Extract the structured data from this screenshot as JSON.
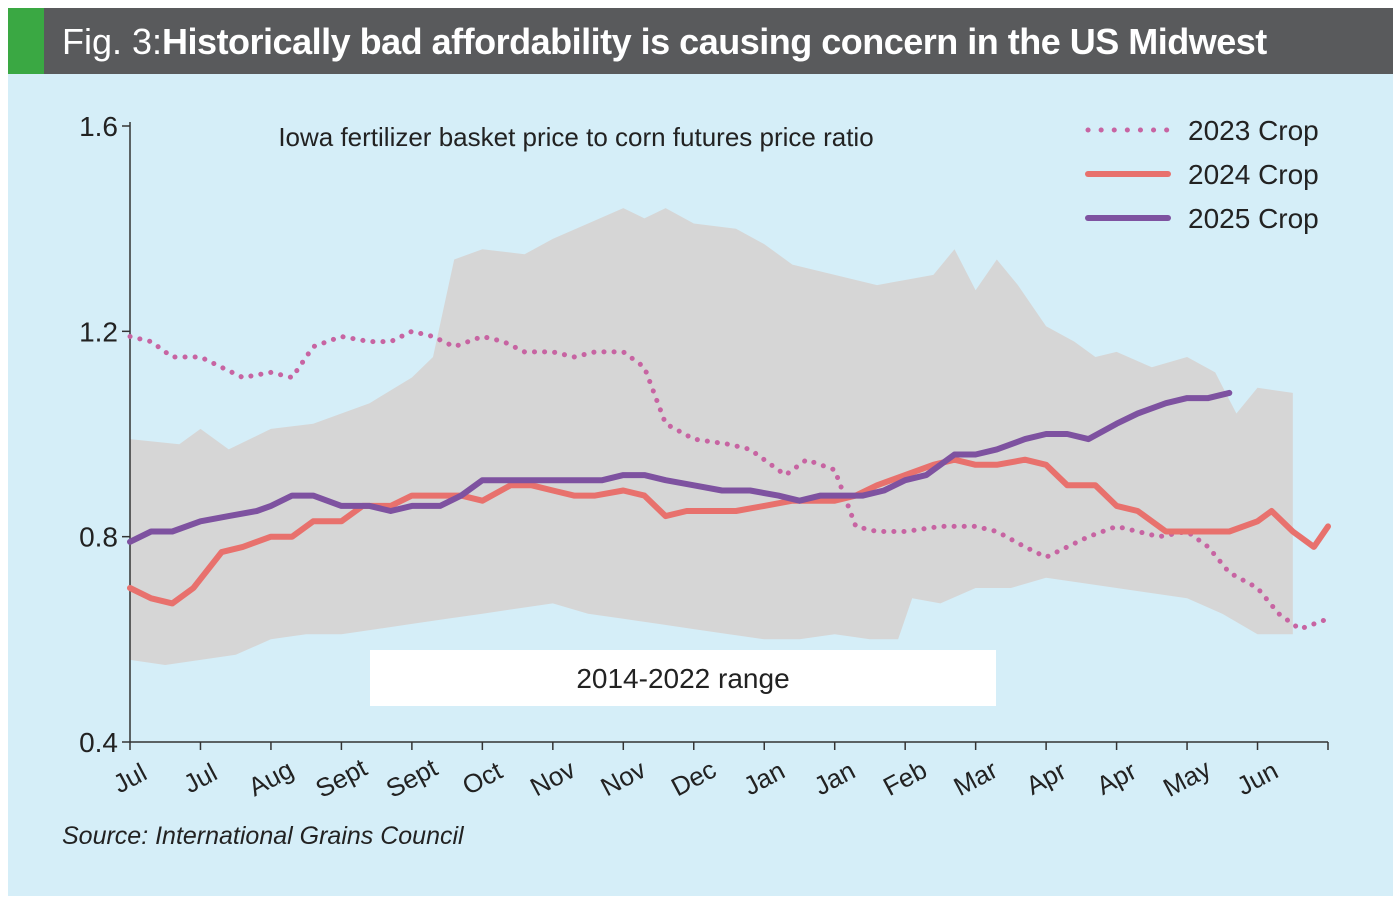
{
  "header": {
    "fig_label": "Fig. 3:",
    "title": "Historically bad affordability is causing concern in the US Midwest",
    "accent_color": "#3aa843",
    "bar_color": "#595a5c"
  },
  "source": "Source: International Grains Council",
  "chart_data": {
    "type": "line",
    "title": "Iowa fertilizer basket price to corn futures price ratio",
    "ylim": [
      0.4,
      1.6
    ],
    "yticks": [
      "0.4",
      "0.8",
      "1.2",
      "1.6"
    ],
    "xlim": [
      0,
      17
    ],
    "xticks": [
      "Jul",
      "Jul",
      "Aug",
      "Sept",
      "Sept",
      "Oct",
      "Nov",
      "Nov",
      "Dec",
      "Jan",
      "Jan",
      "Feb",
      "Mar",
      "Apr",
      "Apr",
      "May",
      "Jun"
    ],
    "legend_position": "top-right",
    "range_band": {
      "label": "2014-2022 range",
      "color": "#d6d6d6",
      "upper": [
        [
          0,
          0.99
        ],
        [
          0.7,
          0.98
        ],
        [
          1,
          1.01
        ],
        [
          1.4,
          0.97
        ],
        [
          2,
          1.01
        ],
        [
          2.6,
          1.02
        ],
        [
          3,
          1.04
        ],
        [
          3.4,
          1.06
        ],
        [
          4,
          1.11
        ],
        [
          4.3,
          1.15
        ],
        [
          4.6,
          1.34
        ],
        [
          5,
          1.36
        ],
        [
          5.6,
          1.35
        ],
        [
          6,
          1.38
        ],
        [
          6.5,
          1.41
        ],
        [
          7,
          1.44
        ],
        [
          7.3,
          1.42
        ],
        [
          7.6,
          1.44
        ],
        [
          8,
          1.41
        ],
        [
          8.6,
          1.4
        ],
        [
          9,
          1.37
        ],
        [
          9.4,
          1.33
        ],
        [
          10,
          1.31
        ],
        [
          10.6,
          1.29
        ],
        [
          11,
          1.3
        ],
        [
          11.4,
          1.31
        ],
        [
          11.7,
          1.36
        ],
        [
          12,
          1.28
        ],
        [
          12.3,
          1.34
        ],
        [
          12.6,
          1.29
        ],
        [
          13,
          1.21
        ],
        [
          13.4,
          1.18
        ],
        [
          13.7,
          1.15
        ],
        [
          14,
          1.16
        ],
        [
          14.5,
          1.13
        ],
        [
          15,
          1.15
        ],
        [
          15.4,
          1.12
        ],
        [
          15.7,
          1.04
        ],
        [
          16,
          1.09
        ],
        [
          16.5,
          1.08
        ]
      ],
      "lower": [
        [
          0,
          0.56
        ],
        [
          0.5,
          0.55
        ],
        [
          1,
          0.56
        ],
        [
          1.5,
          0.57
        ],
        [
          2,
          0.6
        ],
        [
          2.5,
          0.61
        ],
        [
          3,
          0.61
        ],
        [
          3.5,
          0.62
        ],
        [
          4,
          0.63
        ],
        [
          4.5,
          0.64
        ],
        [
          5,
          0.65
        ],
        [
          5.5,
          0.66
        ],
        [
          6,
          0.67
        ],
        [
          6.5,
          0.65
        ],
        [
          7,
          0.64
        ],
        [
          7.5,
          0.63
        ],
        [
          8,
          0.62
        ],
        [
          8.5,
          0.61
        ],
        [
          9,
          0.6
        ],
        [
          9.5,
          0.6
        ],
        [
          10,
          0.61
        ],
        [
          10.5,
          0.6
        ],
        [
          10.9,
          0.6
        ],
        [
          11.1,
          0.68
        ],
        [
          11.5,
          0.67
        ],
        [
          12,
          0.7
        ],
        [
          12.5,
          0.7
        ],
        [
          13,
          0.72
        ],
        [
          13.5,
          0.71
        ],
        [
          14,
          0.7
        ],
        [
          14.5,
          0.69
        ],
        [
          15,
          0.68
        ],
        [
          15.5,
          0.65
        ],
        [
          16,
          0.61
        ],
        [
          16.5,
          0.61
        ]
      ]
    },
    "series": [
      {
        "name": "2023 Crop",
        "color": "#c764a2",
        "style": "dotted",
        "points": [
          [
            0,
            1.19
          ],
          [
            0.3,
            1.18
          ],
          [
            0.6,
            1.15
          ],
          [
            1,
            1.15
          ],
          [
            1.3,
            1.13
          ],
          [
            1.6,
            1.11
          ],
          [
            2,
            1.12
          ],
          [
            2.3,
            1.11
          ],
          [
            2.6,
            1.17
          ],
          [
            3,
            1.19
          ],
          [
            3.4,
            1.18
          ],
          [
            3.7,
            1.18
          ],
          [
            4,
            1.2
          ],
          [
            4.3,
            1.19
          ],
          [
            4.6,
            1.17
          ],
          [
            5,
            1.19
          ],
          [
            5.3,
            1.18
          ],
          [
            5.6,
            1.16
          ],
          [
            6,
            1.16
          ],
          [
            6.3,
            1.15
          ],
          [
            6.6,
            1.16
          ],
          [
            7,
            1.16
          ],
          [
            7.3,
            1.13
          ],
          [
            7.6,
            1.02
          ],
          [
            8,
            0.99
          ],
          [
            8.5,
            0.98
          ],
          [
            8.8,
            0.97
          ],
          [
            9,
            0.95
          ],
          [
            9.3,
            0.92
          ],
          [
            9.6,
            0.95
          ],
          [
            10,
            0.93
          ],
          [
            10.3,
            0.82
          ],
          [
            10.6,
            0.81
          ],
          [
            11,
            0.81
          ],
          [
            11.5,
            0.82
          ],
          [
            12,
            0.82
          ],
          [
            12.3,
            0.81
          ],
          [
            12.7,
            0.78
          ],
          [
            13,
            0.76
          ],
          [
            13.3,
            0.78
          ],
          [
            13.6,
            0.8
          ],
          [
            14,
            0.82
          ],
          [
            14.3,
            0.81
          ],
          [
            14.6,
            0.8
          ],
          [
            15,
            0.81
          ],
          [
            15.3,
            0.78
          ],
          [
            15.6,
            0.73
          ],
          [
            16,
            0.7
          ],
          [
            16.3,
            0.65
          ],
          [
            16.6,
            0.62
          ],
          [
            17,
            0.64
          ]
        ]
      },
      {
        "name": "2024 Crop",
        "color": "#e8716d",
        "style": "solid",
        "points": [
          [
            0,
            0.7
          ],
          [
            0.3,
            0.68
          ],
          [
            0.6,
            0.67
          ],
          [
            0.9,
            0.7
          ],
          [
            1.3,
            0.77
          ],
          [
            1.6,
            0.78
          ],
          [
            2,
            0.8
          ],
          [
            2.3,
            0.8
          ],
          [
            2.6,
            0.83
          ],
          [
            3,
            0.83
          ],
          [
            3.3,
            0.86
          ],
          [
            3.7,
            0.86
          ],
          [
            4,
            0.88
          ],
          [
            4.3,
            0.88
          ],
          [
            4.7,
            0.88
          ],
          [
            5,
            0.87
          ],
          [
            5.4,
            0.9
          ],
          [
            5.7,
            0.9
          ],
          [
            6,
            0.89
          ],
          [
            6.3,
            0.88
          ],
          [
            6.6,
            0.88
          ],
          [
            7,
            0.89
          ],
          [
            7.3,
            0.88
          ],
          [
            7.6,
            0.84
          ],
          [
            7.9,
            0.85
          ],
          [
            8.2,
            0.85
          ],
          [
            8.6,
            0.85
          ],
          [
            9,
            0.86
          ],
          [
            9.4,
            0.87
          ],
          [
            9.7,
            0.87
          ],
          [
            10,
            0.87
          ],
          [
            10.3,
            0.88
          ],
          [
            10.6,
            0.9
          ],
          [
            11,
            0.92
          ],
          [
            11.4,
            0.94
          ],
          [
            11.7,
            0.95
          ],
          [
            12,
            0.94
          ],
          [
            12.3,
            0.94
          ],
          [
            12.7,
            0.95
          ],
          [
            13,
            0.94
          ],
          [
            13.3,
            0.9
          ],
          [
            13.7,
            0.9
          ],
          [
            14,
            0.86
          ],
          [
            14.3,
            0.85
          ],
          [
            14.7,
            0.81
          ],
          [
            15,
            0.81
          ],
          [
            15.3,
            0.81
          ],
          [
            15.6,
            0.81
          ],
          [
            16,
            0.83
          ],
          [
            16.2,
            0.85
          ],
          [
            16.5,
            0.81
          ],
          [
            16.8,
            0.78
          ],
          [
            17,
            0.82
          ]
        ]
      },
      {
        "name": "2025 Crop",
        "color": "#7e52a0",
        "style": "solid",
        "points": [
          [
            0,
            0.79
          ],
          [
            0.3,
            0.81
          ],
          [
            0.6,
            0.81
          ],
          [
            1,
            0.83
          ],
          [
            1.4,
            0.84
          ],
          [
            1.8,
            0.85
          ],
          [
            2,
            0.86
          ],
          [
            2.3,
            0.88
          ],
          [
            2.6,
            0.88
          ],
          [
            3,
            0.86
          ],
          [
            3.4,
            0.86
          ],
          [
            3.7,
            0.85
          ],
          [
            4,
            0.86
          ],
          [
            4.4,
            0.86
          ],
          [
            4.7,
            0.88
          ],
          [
            5,
            0.91
          ],
          [
            5.4,
            0.91
          ],
          [
            5.7,
            0.91
          ],
          [
            6,
            0.91
          ],
          [
            6.4,
            0.91
          ],
          [
            6.7,
            0.91
          ],
          [
            7,
            0.92
          ],
          [
            7.3,
            0.92
          ],
          [
            7.6,
            0.91
          ],
          [
            8,
            0.9
          ],
          [
            8.4,
            0.89
          ],
          [
            8.8,
            0.89
          ],
          [
            9.2,
            0.88
          ],
          [
            9.5,
            0.87
          ],
          [
            9.8,
            0.88
          ],
          [
            10.1,
            0.88
          ],
          [
            10.4,
            0.88
          ],
          [
            10.7,
            0.89
          ],
          [
            11,
            0.91
          ],
          [
            11.3,
            0.92
          ],
          [
            11.7,
            0.96
          ],
          [
            12,
            0.96
          ],
          [
            12.3,
            0.97
          ],
          [
            12.7,
            0.99
          ],
          [
            13,
            1.0
          ],
          [
            13.3,
            1.0
          ],
          [
            13.6,
            0.99
          ],
          [
            14,
            1.02
          ],
          [
            14.3,
            1.04
          ],
          [
            14.7,
            1.06
          ],
          [
            15,
            1.07
          ],
          [
            15.3,
            1.07
          ],
          [
            15.6,
            1.08
          ]
        ]
      }
    ]
  }
}
